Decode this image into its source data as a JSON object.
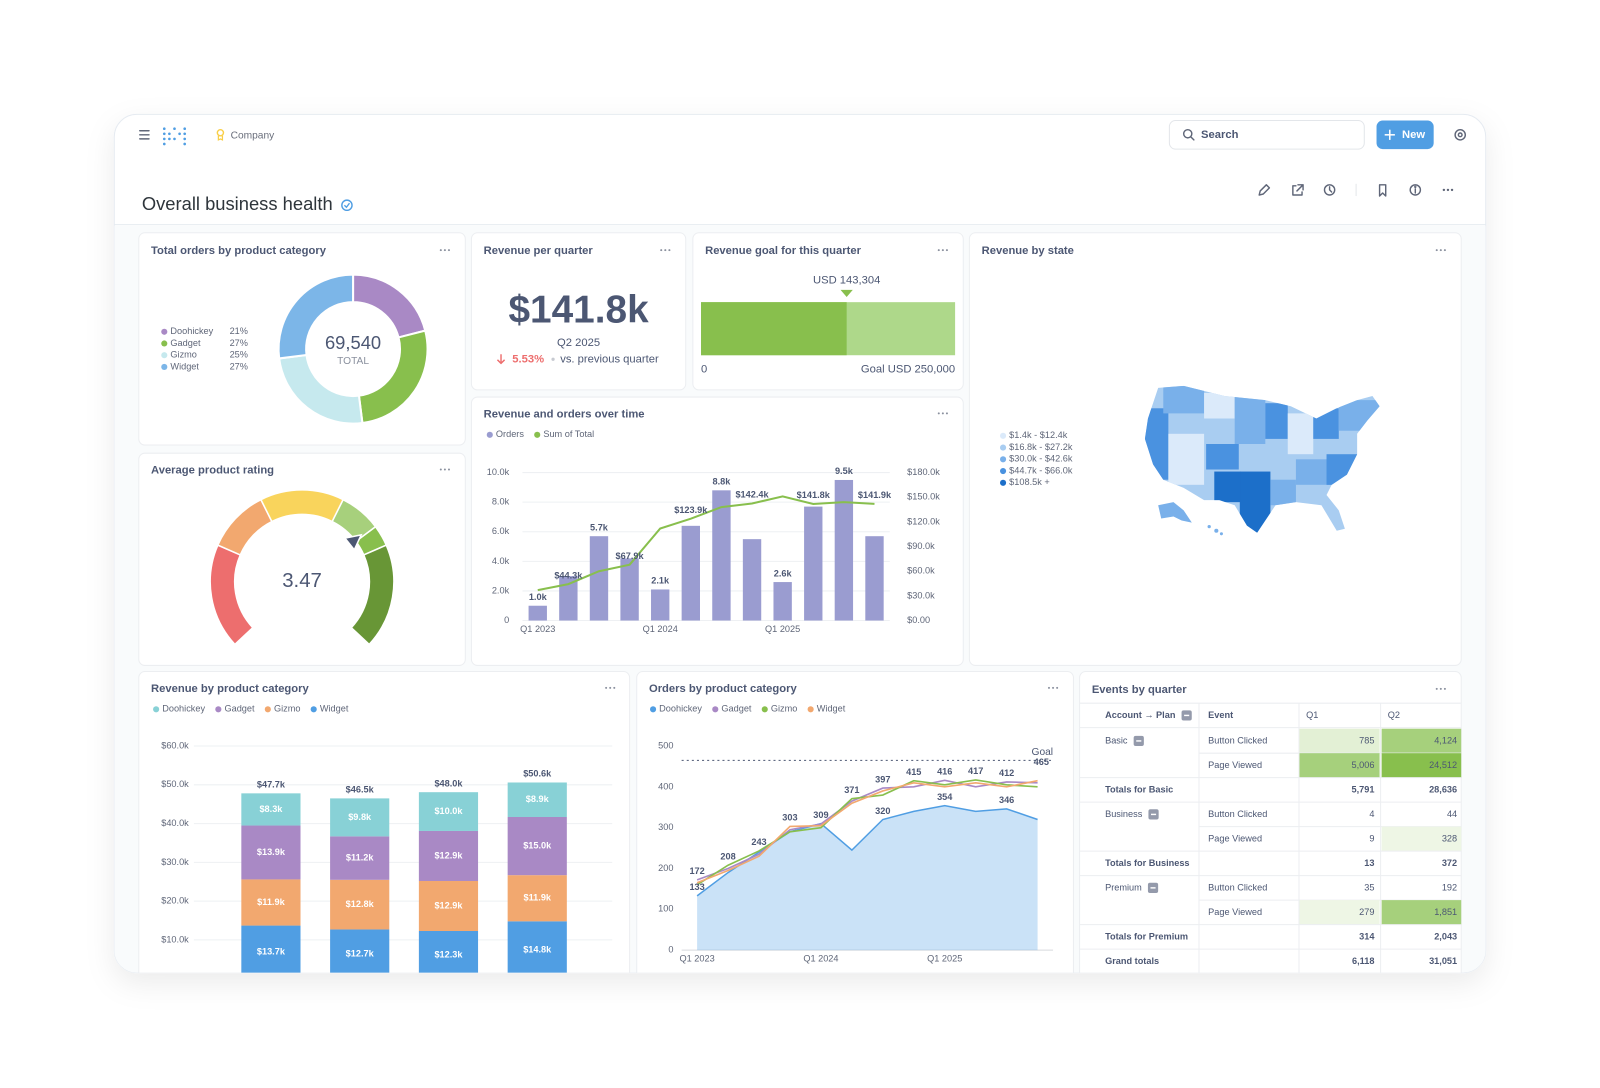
{
  "header": {
    "org": "Company",
    "search": "Search",
    "new_button": "New"
  },
  "dashboard": {
    "title": "Overall business health"
  },
  "chart_data": [
    {
      "type": "pie",
      "title": "Total orders by product category",
      "categories": [
        "Doohickey",
        "Gadget",
        "Gizmo",
        "Widget"
      ],
      "values": [
        21,
        27,
        25,
        27
      ],
      "value_labels": [
        "21%",
        "27%",
        "25%",
        "27%"
      ],
      "colors": [
        "#a989c5",
        "#88bf4d",
        "#c6e9ee",
        "#7cb6e8"
      ],
      "total_label": "69,540",
      "total_caption": "TOTAL"
    },
    {
      "type": "scalar",
      "title": "Revenue per quarter",
      "value_label": "$141.8k",
      "period": "Q2 2025",
      "change_label": "5.53%",
      "comparison": "vs. previous quarter"
    },
    {
      "type": "progress",
      "title": "Revenue goal for this quarter",
      "value": 143304,
      "value_label": "USD 143,304",
      "goal": 250000,
      "goal_label": "Goal USD 250,000",
      "xlim": [
        0,
        250000
      ],
      "xticks": [
        0
      ],
      "color": "#88bf4d",
      "remaining_color": "#aed88a"
    },
    {
      "type": "map",
      "title": "Revenue by state",
      "legend": [
        "$1.4k - $12.4k",
        "$16.8k - $27.2k",
        "$30.0k - $42.6k",
        "$44.7k - $66.0k",
        "$108.5k +"
      ],
      "colors": [
        "#dbeafa",
        "#a9cdf1",
        "#79b0ea",
        "#4a92e0",
        "#1c6fc9"
      ]
    },
    {
      "type": "combo",
      "title": "Revenue and orders over time",
      "categories": [
        "Q1 2023",
        null,
        null,
        null,
        "Q1 2024",
        null,
        null,
        null,
        "Q1 2025",
        null,
        null,
        null
      ],
      "series": [
        {
          "name": "Orders",
          "type": "bar",
          "color": "#9a9cd0",
          "values": [
            1000,
            3000,
            5700,
            4200,
            2100,
            6400,
            8800,
            5500,
            2600,
            7700,
            9500,
            5700
          ],
          "value_labels": [
            "1.0k",
            null,
            "5.7k",
            null,
            "2.1k",
            null,
            "8.8k",
            null,
            "2.6k",
            null,
            "9.5k",
            null
          ]
        },
        {
          "name": "Sum of Total",
          "type": "line",
          "axis": "y2",
          "color": "#88bf4d",
          "values": [
            37000,
            44300,
            60000,
            67900,
            112000,
            123900,
            138000,
            142400,
            151000,
            141800,
            144000,
            141900
          ],
          "value_labels": [
            null,
            "$44.3k",
            null,
            "$67.9k",
            null,
            "$123.9k",
            null,
            "$142.4k",
            null,
            "$141.8k",
            null,
            "$141.9k"
          ]
        }
      ],
      "ylim": [
        0,
        10000
      ],
      "yticks": [
        0,
        {
          "value": 2000,
          "label": "2.0k"
        },
        {
          "value": 4000,
          "label": "4.0k"
        },
        {
          "value": 6000,
          "label": "6.0k"
        },
        {
          "value": 8000,
          "label": "8.0k"
        },
        {
          "value": 10000,
          "label": "10.0k"
        }
      ],
      "y2lim": [
        0,
        180000
      ],
      "y2ticks": [
        {
          "value": 0,
          "label": "$0.00"
        },
        {
          "value": 30000,
          "label": "$30.0k"
        },
        {
          "value": 60000,
          "label": "$60.0k"
        },
        {
          "value": 90000,
          "label": "$90.0k"
        },
        {
          "value": 120000,
          "label": "$120.0k"
        },
        {
          "value": 150000,
          "label": "$150.0k"
        },
        {
          "value": 180000,
          "label": "$180.0k"
        }
      ],
      "grid": true
    },
    {
      "type": "gauge",
      "title": "Average product rating",
      "value": 3.47,
      "range": [
        0,
        5
      ],
      "segments": [
        {
          "from": 0,
          "to": 1.25,
          "color": "#ed6e6e"
        },
        {
          "from": 1.25,
          "to": 2,
          "color": "#f2a86f"
        },
        {
          "from": 2,
          "to": 3,
          "color": "#f9d45c"
        },
        {
          "from": 3,
          "to": 3.5,
          "color": "#a7d07c"
        },
        {
          "from": 3.5,
          "to": 3.75,
          "color": "#88bf4d"
        },
        {
          "from": 3.75,
          "to": 5,
          "color": "#689636"
        }
      ]
    },
    {
      "type": "stacked_bar",
      "title": "Revenue by product category",
      "categories": [
        null,
        null,
        null,
        null
      ],
      "series": [
        {
          "name": "Doohickey",
          "color": "#88d1d6",
          "values": [
            8300,
            9800,
            10000,
            8900
          ],
          "value_labels": [
            "$8.3k",
            "$9.8k",
            "$10.0k",
            "$8.9k"
          ]
        },
        {
          "name": "Gadget",
          "color": "#a989c5",
          "values": [
            13900,
            11200,
            12900,
            15000
          ],
          "value_labels": [
            "$13.9k",
            "$11.2k",
            "$12.9k",
            "$15.0k"
          ]
        },
        {
          "name": "Gizmo",
          "color": "#f2a86f",
          "values": [
            11900,
            12800,
            12900,
            11900
          ],
          "value_labels": [
            "$11.9k",
            "$12.8k",
            "$12.9k",
            "$11.9k"
          ]
        },
        {
          "name": "Widget",
          "color": "#509ee3",
          "values": [
            13700,
            12700,
            12300,
            14800
          ],
          "value_labels": [
            "$13.7k",
            "$12.7k",
            "$12.3k",
            "$14.8k"
          ]
        }
      ],
      "total_labels": [
        "$47.7k",
        "$46.5k",
        "$48.0k",
        "$50.6k"
      ],
      "ylim": [
        0,
        60000
      ],
      "yticks": [
        {
          "value": 10000,
          "label": "$10.0k"
        },
        {
          "value": 20000,
          "label": "$20.0k"
        },
        {
          "value": 30000,
          "label": "$30.0k"
        },
        {
          "value": 40000,
          "label": "$40.0k"
        },
        {
          "value": 50000,
          "label": "$50.0k"
        },
        {
          "value": 60000,
          "label": "$60.0k"
        }
      ],
      "grid": true
    },
    {
      "type": "area_line",
      "title": "Orders by product category",
      "categories": [
        "Q1 2023",
        null,
        null,
        null,
        "Q1 2024",
        null,
        null,
        null,
        "Q1 2025",
        null,
        null,
        null
      ],
      "series": [
        {
          "name": "Doohickey",
          "type": "area",
          "color": "#509ee3",
          "values": [
            133,
            190,
            240,
            290,
            310,
            245,
            320,
            340,
            354,
            340,
            346,
            320
          ],
          "value_labels": [
            "133",
            null,
            null,
            null,
            null,
            null,
            "320",
            null,
            "354",
            null,
            "346",
            null
          ]
        },
        {
          "name": "Gadget",
          "type": "line",
          "color": "#a989c5",
          "values": [
            172,
            200,
            235,
            295,
            309,
            365,
            397,
            400,
            416,
            400,
            412,
            410
          ],
          "value_labels": [
            "172",
            null,
            null,
            null,
            "309",
            null,
            "397",
            null,
            "416",
            null,
            "412",
            null
          ]
        },
        {
          "name": "Gizmo",
          "type": "line",
          "color": "#88bf4d",
          "values": [
            160,
            208,
            243,
            290,
            300,
            371,
            380,
            415,
            405,
            417,
            405,
            400
          ],
          "value_labels": [
            null,
            "208",
            "243",
            null,
            null,
            "371",
            null,
            "415",
            null,
            "417",
            null,
            null
          ]
        },
        {
          "name": "Widget",
          "type": "line",
          "color": "#f2a86f",
          "values": [
            165,
            195,
            230,
            303,
            305,
            360,
            390,
            410,
            400,
            410,
            400,
            415
          ],
          "value_labels": [
            null,
            null,
            null,
            "303",
            null,
            null,
            null,
            null,
            null,
            null,
            null,
            null
          ]
        }
      ],
      "ylim": [
        0,
        500
      ],
      "yticks": [
        0,
        100,
        200,
        300,
        400,
        500
      ],
      "goal": 465,
      "goal_label": "Goal",
      "grid": false
    }
  ],
  "table": {
    "title": "Events by quarter",
    "columns": [
      "Account → Plan",
      "Event",
      "Q1",
      "Q2"
    ],
    "rows": [
      [
        "Basic",
        "Button Clicked",
        "785",
        "4,124"
      ],
      [
        null,
        "Page Viewed",
        "5,006",
        "24,512"
      ],
      [
        "Totals for Basic",
        null,
        "5,791",
        "28,636"
      ],
      [
        "Business",
        "Button Clicked",
        "4",
        "44"
      ],
      [
        null,
        "Page Viewed",
        "9",
        "328"
      ],
      [
        "Totals for Business",
        null,
        "13",
        "372"
      ],
      [
        "Premium",
        "Button Clicked",
        "35",
        "192"
      ],
      [
        null,
        "Page Viewed",
        "279",
        "1,851"
      ],
      [
        "Totals for Premium",
        null,
        "314",
        "2,043"
      ],
      [
        "Grand totals",
        null,
        "6,118",
        "31,051"
      ]
    ]
  }
}
